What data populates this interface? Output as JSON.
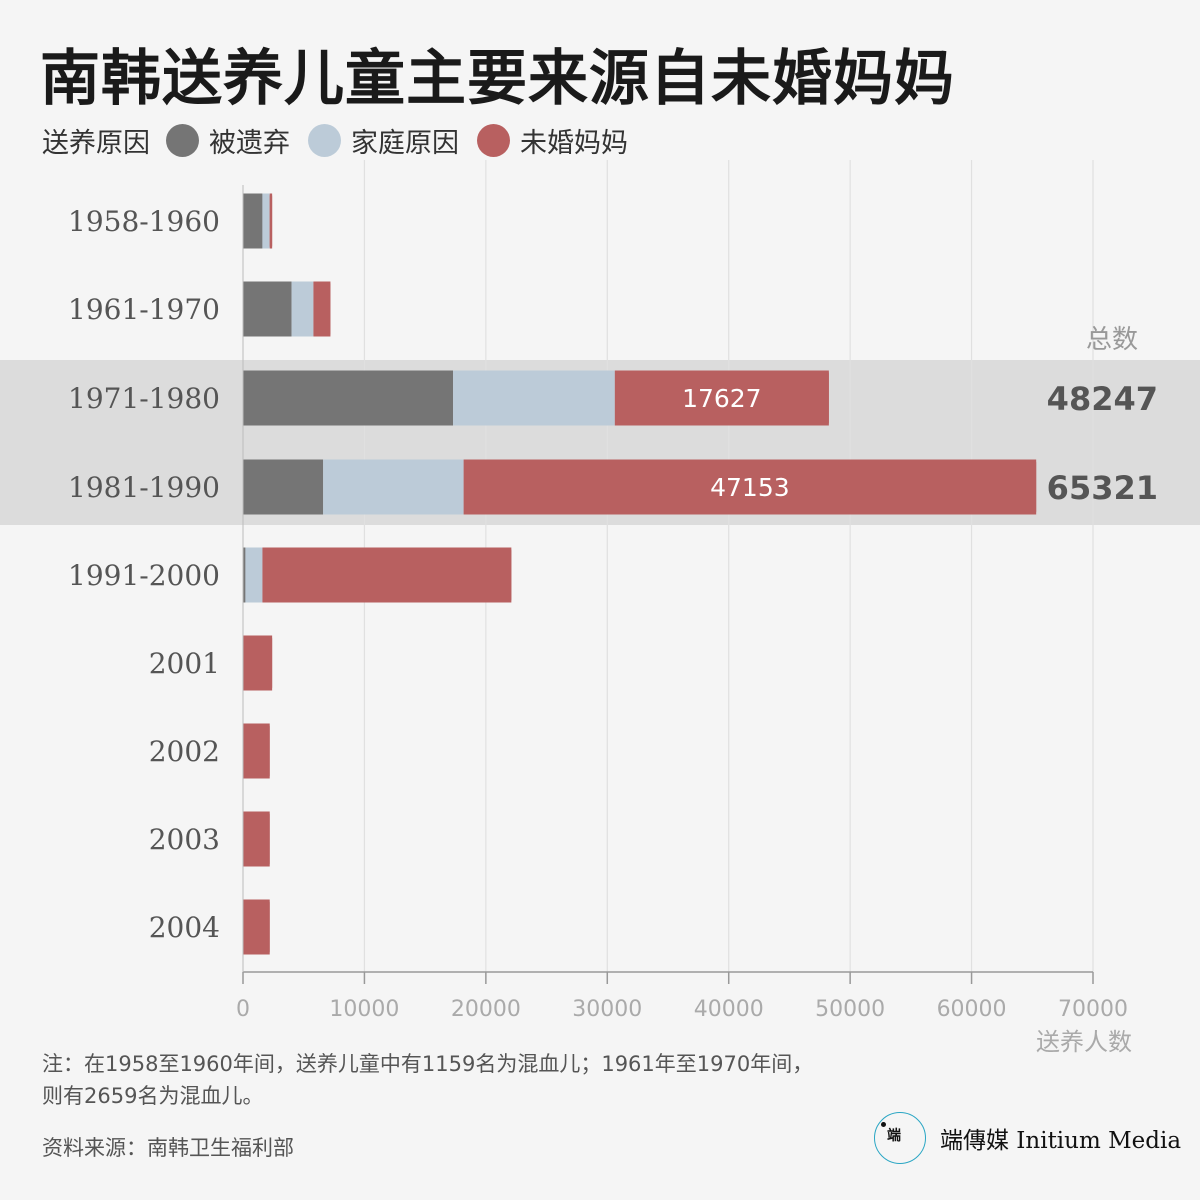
{
  "title": "南韩送养儿童主要来源自未婚妈妈",
  "legend": {
    "title": "送养原因",
    "items": [
      {
        "label": "被遗弃",
        "color": "#757575"
      },
      {
        "label": "家庭原因",
        "color": "#bccbd8"
      },
      {
        "label": "未婚妈妈",
        "color": "#b86060"
      }
    ]
  },
  "chart_data": {
    "type": "bar",
    "orientation": "horizontal",
    "stacked": true,
    "categories": [
      "1958-1960",
      "1961-1970",
      "1971-1980",
      "1981-1990",
      "1991-2000",
      "2001",
      "2002",
      "2003",
      "2004"
    ],
    "series": [
      {
        "name": "被遗弃",
        "values": [
          1600,
          4000,
          17300,
          6600,
          200,
          0,
          0,
          0,
          0
        ]
      },
      {
        "name": "家庭原因",
        "values": [
          600,
          1800,
          13320,
          11568,
          1400,
          0,
          0,
          0,
          0
        ]
      },
      {
        "name": "未婚妈妈",
        "values": [
          200,
          1400,
          17627,
          47153,
          20500,
          2400,
          2200,
          2200,
          2200
        ]
      }
    ],
    "highlighted": [
      "1971-1980",
      "1981-1990"
    ],
    "data_labels": {
      "1971-1980": "17627",
      "1981-1990": "47153"
    },
    "totals_header": "总数",
    "totals": {
      "1971-1980": "48247",
      "1981-1990": "65321"
    },
    "xlim": [
      0,
      70000
    ],
    "xticks": [
      0,
      10000,
      20000,
      30000,
      40000,
      50000,
      60000,
      70000
    ],
    "xlabel": "送养人数",
    "grid": true
  },
  "note": {
    "line1": "注：在1958至1960年间，送养儿童中有1159名为混血儿；1961年至1970年间，",
    "line2": "则有2659名为混血儿。"
  },
  "source": "资料来源：南韩卫生福利部",
  "brand": {
    "logo_text": "端",
    "name": "端傳媒 Initium Media"
  }
}
